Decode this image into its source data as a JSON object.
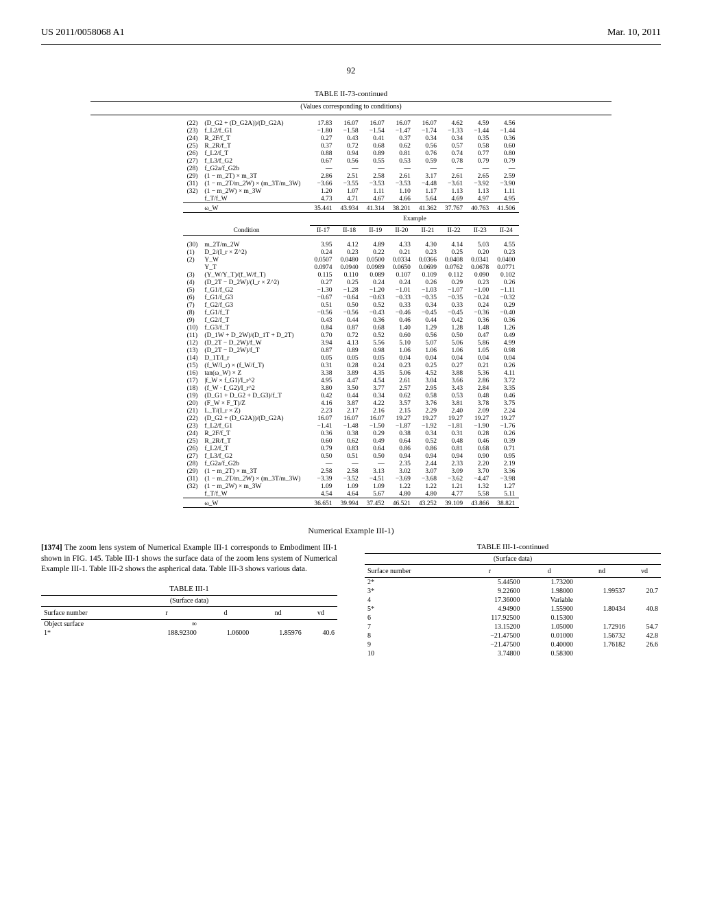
{
  "header": {
    "patent_id": "US 2011/0058068 A1",
    "date": "Mar. 10, 2011"
  },
  "page_number": "92",
  "big_table": {
    "title": "TABLE II-73-continued",
    "subtitle": "(Values corresponding to conditions)",
    "upper_cols": [
      "II-9",
      "II-10",
      "II-11",
      "II-12",
      "II-13",
      "II-14",
      "II-15",
      "II-16"
    ],
    "upper_rows": [
      {
        "n": "(22)",
        "l": "(D_G2 + (D_G2A))/(D_G2A)",
        "v": [
          "17.83",
          "16.07",
          "16.07",
          "16.07",
          "16.07",
          "4.62",
          "4.59",
          "4.56"
        ]
      },
      {
        "n": "(23)",
        "l": "f_L2/f_G1",
        "v": [
          "−1.80",
          "−1.58",
          "−1.54",
          "−1.47",
          "−1.74",
          "−1.33",
          "−1.44",
          "−1.44"
        ]
      },
      {
        "n": "(24)",
        "l": "R_2F/f_T",
        "v": [
          "0.27",
          "0.43",
          "0.41",
          "0.37",
          "0.34",
          "0.34",
          "0.35",
          "0.36"
        ]
      },
      {
        "n": "(25)",
        "l": "R_2R/f_T",
        "v": [
          "0.37",
          "0.72",
          "0.68",
          "0.62",
          "0.56",
          "0.57",
          "0.58",
          "0.60"
        ]
      },
      {
        "n": "(26)",
        "l": "f_L2/f_T",
        "v": [
          "0.88",
          "0.94",
          "0.89",
          "0.81",
          "0.76",
          "0.74",
          "0.77",
          "0.80"
        ]
      },
      {
        "n": "(27)",
        "l": "f_L3/f_G2",
        "v": [
          "0.67",
          "0.56",
          "0.55",
          "0.53",
          "0.59",
          "0.78",
          "0.79",
          "0.79"
        ]
      },
      {
        "n": "(28)",
        "l": "f_G2a/f_G2b",
        "v": [
          "—",
          "—",
          "—",
          "—",
          "—",
          "—",
          "—",
          "—"
        ]
      },
      {
        "n": "(29)",
        "l": "(1 − m_2T) × m_3T",
        "v": [
          "2.86",
          "2.51",
          "2.58",
          "2.61",
          "3.17",
          "2.61",
          "2.65",
          "2.59"
        ]
      },
      {
        "n": "(31)",
        "l": "(1 − m_2T/m_2W) × (m_3T/m_3W)",
        "v": [
          "−3.66",
          "−3.55",
          "−3.53",
          "−3.53",
          "−4.48",
          "−3.61",
          "−3.92",
          "−3.90"
        ]
      },
      {
        "n": "(32)",
        "l": "(1 − m_2W) × m_3W",
        "v": [
          "1.20",
          "1.07",
          "1.11",
          "1.10",
          "1.17",
          "1.13",
          "1.13",
          "1.11"
        ]
      },
      {
        "n": "",
        "l": "f_T/f_W",
        "v": [
          "4.73",
          "4.71",
          "4.67",
          "4.66",
          "5.64",
          "4.69",
          "4.97",
          "4.95"
        ]
      }
    ],
    "upper_omega": {
      "l": "ω_W",
      "v": [
        "35.441",
        "43.934",
        "41.314",
        "38.201",
        "41.362",
        "37.767",
        "40.763",
        "41.506"
      ]
    },
    "example_header": "Example",
    "lower_col_header": "Condition",
    "lower_cols": [
      "II-17",
      "II-18",
      "II-19",
      "II-20",
      "II-21",
      "II-22",
      "II-23",
      "II-24"
    ],
    "lower_rows": [
      {
        "n": "(30)",
        "l": "m_2T/m_2W",
        "v": [
          "3.95",
          "4.12",
          "4.89",
          "4.33",
          "4.30",
          "4.14",
          "5.03",
          "4.55"
        ]
      },
      {
        "n": "(1)",
        "l": "D_2/(I_r × Z^2)",
        "v": [
          "0.24",
          "0.23",
          "0.22",
          "0.21",
          "0.23",
          "0.25",
          "0.20",
          "0.23"
        ]
      },
      {
        "n": "(2)",
        "l": "Y_W",
        "v": [
          "0.0507",
          "0.0480",
          "0.0500",
          "0.0334",
          "0.0366",
          "0.0408",
          "0.0341",
          "0.0400"
        ]
      },
      {
        "n": "",
        "l": "Y_T",
        "v": [
          "0.0974",
          "0.0940",
          "0.0989",
          "0.0650",
          "0.0699",
          "0.0762",
          "0.0678",
          "0.0771"
        ]
      },
      {
        "n": "(3)",
        "l": "(Y_W/Y_T)/(f_W/f_T)",
        "v": [
          "0.115",
          "0.110",
          "0.089",
          "0.107",
          "0.109",
          "0.112",
          "0.090",
          "0.102"
        ]
      },
      {
        "n": "(4)",
        "l": "(D_2T − D_2W)/(I_r × Z^2)",
        "v": [
          "0.27",
          "0.25",
          "0.24",
          "0.24",
          "0.26",
          "0.29",
          "0.23",
          "0.26"
        ]
      },
      {
        "n": "(5)",
        "l": "f_G1/f_G2",
        "v": [
          "−1.30",
          "−1.28",
          "−1.20",
          "−1.01",
          "−1.03",
          "−1.07",
          "−1.00",
          "−1.11"
        ]
      },
      {
        "n": "(6)",
        "l": "f_G1/f_G3",
        "v": [
          "−0.67",
          "−0.64",
          "−0.63",
          "−0.33",
          "−0.35",
          "−0.35",
          "−0.24",
          "−0.32"
        ]
      },
      {
        "n": "(7)",
        "l": "f_G2/f_G3",
        "v": [
          "0.51",
          "0.50",
          "0.52",
          "0.33",
          "0.34",
          "0.33",
          "0.24",
          "0.29"
        ]
      },
      {
        "n": "(8)",
        "l": "f_G1/f_T",
        "v": [
          "−0.56",
          "−0.56",
          "−0.43",
          "−0.46",
          "−0.45",
          "−0.45",
          "−0.36",
          "−0.40"
        ]
      },
      {
        "n": "(9)",
        "l": "f_G2/f_T",
        "v": [
          "0.43",
          "0.44",
          "0.36",
          "0.46",
          "0.44",
          "0.42",
          "0.36",
          "0.36"
        ]
      },
      {
        "n": "(10)",
        "l": "f_G3/f_T",
        "v": [
          "0.84",
          "0.87",
          "0.68",
          "1.40",
          "1.29",
          "1.28",
          "1.48",
          "1.26"
        ]
      },
      {
        "n": "(11)",
        "l": "(D_1W + D_2W)/(D_1T + D_2T)",
        "v": [
          "0.70",
          "0.72",
          "0.52",
          "0.60",
          "0.56",
          "0.50",
          "0.47",
          "0.49"
        ]
      },
      {
        "n": "(12)",
        "l": "(D_2T − D_2W)/f_W",
        "v": [
          "3.94",
          "4.13",
          "5.56",
          "5.10",
          "5.07",
          "5.06",
          "5.86",
          "4.99"
        ]
      },
      {
        "n": "(13)",
        "l": "(D_2T − D_2W)/f_T",
        "v": [
          "0.87",
          "0.89",
          "0.98",
          "1.06",
          "1.06",
          "1.06",
          "1.05",
          "0.98"
        ]
      },
      {
        "n": "(14)",
        "l": "D_1T/I_r",
        "v": [
          "0.05",
          "0.05",
          "0.05",
          "0.04",
          "0.04",
          "0.04",
          "0.04",
          "0.04"
        ]
      },
      {
        "n": "(15)",
        "l": "(f_W/I_r) × (f_W/f_T)",
        "v": [
          "0.31",
          "0.28",
          "0.24",
          "0.23",
          "0.25",
          "0.27",
          "0.21",
          "0.26"
        ]
      },
      {
        "n": "(16)",
        "l": "tan(ω_W) × Z",
        "v": [
          "3.38",
          "3.89",
          "4.35",
          "5.06",
          "4.52",
          "3.88",
          "5.36",
          "4.11"
        ]
      },
      {
        "n": "(17)",
        "l": "|f_W × f_G1|/I_r^2",
        "v": [
          "4.95",
          "4.47",
          "4.54",
          "2.61",
          "3.04",
          "3.66",
          "2.86",
          "3.72"
        ]
      },
      {
        "n": "(18)",
        "l": "(f_W · f_G2)/I_r^2",
        "v": [
          "3.80",
          "3.50",
          "3.77",
          "2.57",
          "2.95",
          "3.43",
          "2.84",
          "3.35"
        ]
      },
      {
        "n": "(19)",
        "l": "(D_G1 + D_G2 + D_G3)/f_T",
        "v": [
          "0.42",
          "0.44",
          "0.34",
          "0.62",
          "0.58",
          "0.53",
          "0.48",
          "0.46"
        ]
      },
      {
        "n": "(20)",
        "l": "(F_W × F_T)/Z",
        "v": [
          "4.16",
          "3.87",
          "4.22",
          "3.57",
          "3.76",
          "3.81",
          "3.78",
          "3.75"
        ]
      },
      {
        "n": "(21)",
        "l": "L_T/(I_r × Z)",
        "v": [
          "2.23",
          "2.17",
          "2.16",
          "2.15",
          "2.29",
          "2.40",
          "2.09",
          "2.24"
        ]
      },
      {
        "n": "(22)",
        "l": "(D_G2 + (D_G2A))/(D_G2A)",
        "v": [
          "16.07",
          "16.07",
          "16.07",
          "19.27",
          "19.27",
          "19.27",
          "19.27",
          "19.27"
        ]
      },
      {
        "n": "(23)",
        "l": "f_L2/f_G1",
        "v": [
          "−1.41",
          "−1.48",
          "−1.50",
          "−1.87",
          "−1.92",
          "−1.81",
          "−1.90",
          "−1.76"
        ]
      },
      {
        "n": "(24)",
        "l": "R_2F/f_T",
        "v": [
          "0.36",
          "0.38",
          "0.29",
          "0.38",
          "0.34",
          "0.31",
          "0.28",
          "0.26"
        ]
      },
      {
        "n": "(25)",
        "l": "R_2R/f_T",
        "v": [
          "0.60",
          "0.62",
          "0.49",
          "0.64",
          "0.52",
          "0.48",
          "0.46",
          "0.39"
        ]
      },
      {
        "n": "(26)",
        "l": "f_L2/f_T",
        "v": [
          "0.79",
          "0.83",
          "0.64",
          "0.86",
          "0.86",
          "0.81",
          "0.68",
          "0.71"
        ]
      },
      {
        "n": "(27)",
        "l": "f_L3/f_G2",
        "v": [
          "0.50",
          "0.51",
          "0.50",
          "0.94",
          "0.94",
          "0.94",
          "0.90",
          "0.95"
        ]
      },
      {
        "n": "(28)",
        "l": "f_G2a/f_G2b",
        "v": [
          "—",
          "—",
          "—",
          "2.35",
          "2.44",
          "2.33",
          "2.20",
          "2.19"
        ]
      },
      {
        "n": "(29)",
        "l": "(1 − m_2T) × m_3T",
        "v": [
          "2.58",
          "2.58",
          "3.13",
          "3.02",
          "3.07",
          "3.09",
          "3.70",
          "3.36"
        ]
      },
      {
        "n": "(31)",
        "l": "(1 − m_2T/m_2W) × (m_3T/m_3W)",
        "v": [
          "−3.39",
          "−3.52",
          "−4.51",
          "−3.69",
          "−3.68",
          "−3.62",
          "−4.47",
          "−3.98"
        ]
      },
      {
        "n": "(32)",
        "l": "(1 − m_2W) × m_3W",
        "v": [
          "1.09",
          "1.09",
          "1.09",
          "1.22",
          "1.22",
          "1.21",
          "1.32",
          "1.27"
        ]
      },
      {
        "n": "",
        "l": "f_T/f_W",
        "v": [
          "4.54",
          "4.64",
          "5.67",
          "4.80",
          "4.80",
          "4.77",
          "5.58",
          "5.11"
        ]
      }
    ],
    "lower_omega": {
      "l": "ω_W",
      "v": [
        "36.651",
        "39.994",
        "37.452",
        "46.521",
        "43.252",
        "39.109",
        "43.866",
        "38.821"
      ]
    }
  },
  "example_title": "Numerical Example III-1)",
  "paragraph": {
    "bold": "[1374]",
    "text": " The zoom lens system of Numerical Example III-1 corresponds to Embodiment III-1 shown in FIG. 145. Table III-1 shows the surface data of the zoom lens system of Numerical Example III-1. Table III-2 shows the aspherical data. Table III-3 shows various data."
  },
  "table3_1": {
    "title": "TABLE III-1",
    "subtitle": "(Surface data)",
    "cols": [
      "Surface number",
      "r",
      "d",
      "nd",
      "vd"
    ],
    "rows": [
      [
        "Object surface",
        "∞",
        "",
        "",
        ""
      ],
      [
        "1*",
        "188.92300",
        "1.06000",
        "1.85976",
        "40.6"
      ]
    ]
  },
  "table3_1_cont": {
    "title": "TABLE III-1-continued",
    "subtitle": "(Surface data)",
    "cols": [
      "Surface number",
      "r",
      "d",
      "nd",
      "vd"
    ],
    "rows": [
      [
        "2*",
        "5.44500",
        "1.73200",
        "",
        ""
      ],
      [
        "3*",
        "9.22600",
        "1.98000",
        "1.99537",
        "20.7"
      ],
      [
        "4",
        "17.36000",
        "Variable",
        "",
        ""
      ],
      [
        "5*",
        "4.94900",
        "1.55900",
        "1.80434",
        "40.8"
      ],
      [
        "6",
        "117.92500",
        "0.15300",
        "",
        ""
      ],
      [
        "7",
        "13.15200",
        "1.05000",
        "1.72916",
        "54.7"
      ],
      [
        "8",
        "−21.47500",
        "0.01000",
        "1.56732",
        "42.8"
      ],
      [
        "9",
        "−21.47500",
        "0.40000",
        "1.76182",
        "26.6"
      ],
      [
        "10",
        "3.74800",
        "0.58300",
        "",
        ""
      ]
    ]
  }
}
